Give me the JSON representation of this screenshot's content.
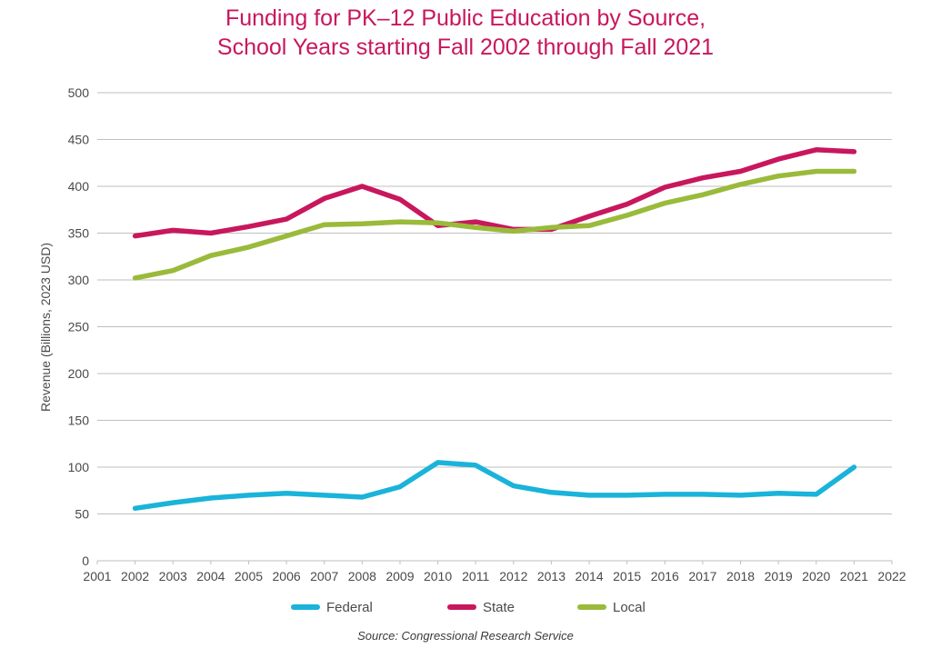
{
  "chart_data": {
    "type": "line",
    "title_line1": "Funding for PK–12 Public Education by Source,",
    "title_line2": "School Years starting Fall 2002 through Fall 2021",
    "ylabel": "Revenue (Billions, 2023 USD)",
    "xlabel": "",
    "xlim": [
      2001,
      2022
    ],
    "ylim": [
      0,
      500
    ],
    "x_ticks": [
      2001,
      2002,
      2003,
      2004,
      2005,
      2006,
      2007,
      2008,
      2009,
      2010,
      2011,
      2012,
      2013,
      2014,
      2015,
      2016,
      2017,
      2018,
      2019,
      2020,
      2021,
      2022
    ],
    "y_ticks": [
      0,
      50,
      100,
      150,
      200,
      250,
      300,
      350,
      400,
      450,
      500
    ],
    "grid": "horizontal",
    "legend_position": "bottom",
    "x": [
      2002,
      2003,
      2004,
      2005,
      2006,
      2007,
      2008,
      2009,
      2010,
      2011,
      2012,
      2013,
      2014,
      2015,
      2016,
      2017,
      2018,
      2019,
      2020,
      2021
    ],
    "series": [
      {
        "name": "Federal",
        "color": "#1ab3d9",
        "values": [
          56,
          62,
          67,
          70,
          72,
          70,
          68,
          79,
          105,
          102,
          80,
          73,
          70,
          70,
          71,
          71,
          70,
          72,
          71,
          100
        ]
      },
      {
        "name": "State",
        "color": "#c8175d",
        "values": [
          347,
          353,
          350,
          357,
          365,
          387,
          400,
          386,
          358,
          362,
          354,
          354,
          368,
          381,
          399,
          409,
          416,
          429,
          439,
          437
        ]
      },
      {
        "name": "Local",
        "color": "#9aba3b",
        "values": [
          302,
          310,
          326,
          335,
          347,
          359,
          360,
          362,
          361,
          356,
          352,
          356,
          358,
          369,
          382,
          391,
          402,
          411,
          416,
          416
        ]
      }
    ],
    "source": "Source: Congressional Research Service",
    "title_color": "#c8175d",
    "grid_color": "#bfbfbf"
  }
}
